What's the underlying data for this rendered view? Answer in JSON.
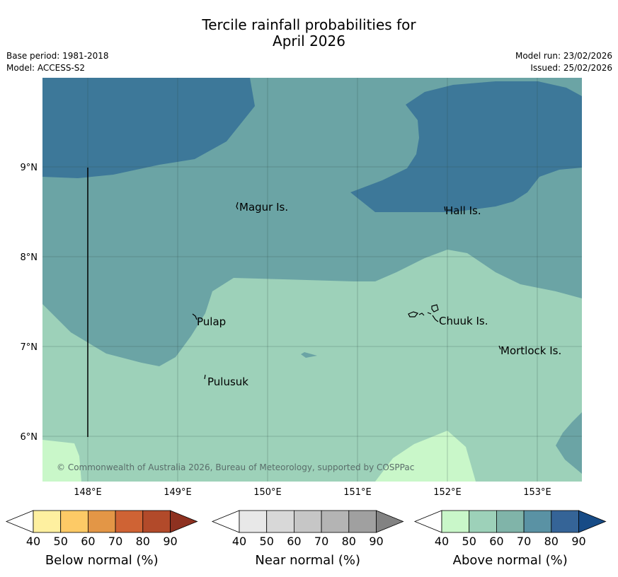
{
  "title": {
    "line1": "Tercile rainfall probabilities for",
    "line2": "April 2026"
  },
  "meta": {
    "base_period": "Base period: 1981-2018",
    "model": "Model: ACCESS-S2",
    "model_run": "Model run: 23/02/2026",
    "issued": "Issued: 25/02/2026"
  },
  "map": {
    "lat_ticks": [
      "9°N",
      "8°N",
      "7°N",
      "6°N"
    ],
    "lon_ticks": [
      "148°E",
      "149°E",
      "150°E",
      "151°E",
      "152°E",
      "153°E"
    ],
    "places": {
      "magur": "Magur Is.",
      "hall": "Hall Is.",
      "pulap": "Pulap",
      "chuuk": "Chuuk Is.",
      "mortlock": "Mortlock Is.",
      "pulusuk": "Pulusuk"
    },
    "copyright": "© Commonwealth of Australia 2026, Bureau of Meteorology, supported by COSPPac",
    "colors": {
      "above_50": "#c9f7c9",
      "above_60": "#9dd1b9",
      "above_70": "#6ba4a5",
      "above_80": "#3d7899"
    }
  },
  "legends": [
    {
      "title": "Below normal (%)",
      "ticks": [
        "40",
        "50",
        "60",
        "70",
        "80",
        "90"
      ],
      "colors": [
        "#fef0a0",
        "#fdca66",
        "#e39646",
        "#cf6334",
        "#b24a2a",
        "#8e3120"
      ]
    },
    {
      "title": "Near normal (%)",
      "ticks": [
        "40",
        "50",
        "60",
        "70",
        "80",
        "90"
      ],
      "colors": [
        "#e8e8e8",
        "#d8d8d8",
        "#c6c6c6",
        "#b4b4b4",
        "#a0a0a0",
        "#828282"
      ]
    },
    {
      "title": "Above normal (%)",
      "ticks": [
        "40",
        "50",
        "60",
        "70",
        "80",
        "90"
      ],
      "colors": [
        "#c9f7c9",
        "#9dd1b9",
        "#80b4a9",
        "#5a92a4",
        "#356497",
        "#174b86"
      ]
    }
  ]
}
